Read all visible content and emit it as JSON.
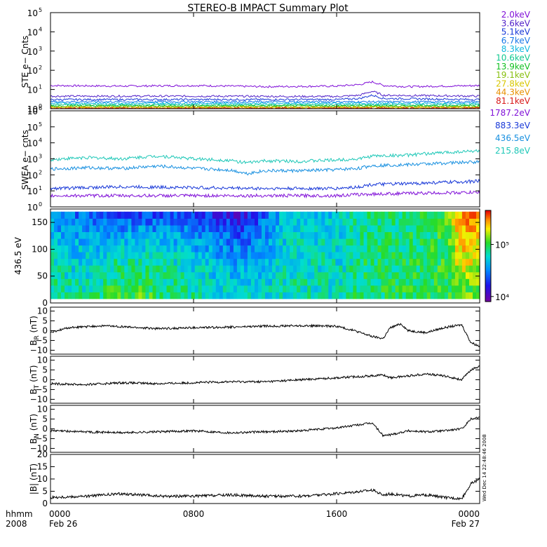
{
  "title": "STEREO-B IMPACT Summary Plot",
  "time_axis": {
    "row_label": "hhmm",
    "year_label": "2008",
    "ticks": [
      {
        "t": 0,
        "label": "0000",
        "date": "Feb 26"
      },
      {
        "t": 8,
        "label": "0800",
        "date": ""
      },
      {
        "t": 16,
        "label": "1600",
        "date": ""
      },
      {
        "t": 24,
        "label": "0000",
        "date": "Feb 27"
      }
    ]
  },
  "side_stamp": "Wed Dec 14 22:48:46 2008",
  "colorbar": {
    "range": [
      8000,
      450000
    ],
    "scale": "log",
    "tick_labels": [
      {
        "value": 10000,
        "label": "10⁴"
      },
      {
        "value": 100000,
        "label": "10⁵"
      }
    ]
  },
  "chart_data": [
    {
      "type": "line",
      "ylabel": "STE e− Cnts",
      "yscale": "log",
      "ylim": [
        1,
        100000
      ],
      "yticks": [
        {
          "v": 1,
          "base": "10",
          "exp": "0"
        },
        {
          "v": 10,
          "base": "10",
          "exp": "1"
        },
        {
          "v": 100,
          "base": "10",
          "exp": "2"
        },
        {
          "v": 1000,
          "base": "10",
          "exp": "3"
        },
        {
          "v": 10000,
          "base": "10",
          "exp": "4"
        },
        {
          "v": 100000,
          "base": "10",
          "exp": "5"
        }
      ],
      "legend_placement": "right",
      "series": [
        {
          "name": "2.0keV",
          "color": "#8010d8",
          "points": [
            [
              0,
              16
            ],
            [
              4,
              15
            ],
            [
              8,
              16
            ],
            [
              12,
              14
            ],
            [
              16,
              15
            ],
            [
              17.3,
              18
            ],
            [
              18,
              25
            ],
            [
              18.6,
              16
            ],
            [
              20,
              14
            ],
            [
              24,
              16
            ]
          ]
        },
        {
          "name": "3.6keV",
          "color": "#5020c8",
          "points": [
            [
              0,
              4.5
            ],
            [
              8,
              4.5
            ],
            [
              16,
              4.3
            ],
            [
              17.3,
              5
            ],
            [
              18,
              8
            ],
            [
              18.6,
              5
            ],
            [
              24,
              4.5
            ]
          ]
        },
        {
          "name": "5.1keV",
          "color": "#1838d8",
          "points": [
            [
              0,
              3
            ],
            [
              8,
              3
            ],
            [
              16,
              3
            ],
            [
              17.3,
              3.4
            ],
            [
              18,
              5
            ],
            [
              18.6,
              3.4
            ],
            [
              24,
              3
            ]
          ]
        },
        {
          "name": "6.7keV",
          "color": "#1878e8",
          "points": [
            [
              0,
              2.3
            ],
            [
              24,
              2.3
            ]
          ]
        },
        {
          "name": "8.3keV",
          "color": "#10b8e0",
          "points": [
            [
              0,
              1.9
            ],
            [
              24,
              1.9
            ]
          ]
        },
        {
          "name": "10.6keV",
          "color": "#10c890",
          "points": [
            [
              0,
              1.6
            ],
            [
              24,
              1.6
            ]
          ]
        },
        {
          "name": "13.9keV",
          "color": "#10c020",
          "points": [
            [
              0,
              1.4
            ],
            [
              24,
              1.4
            ]
          ]
        },
        {
          "name": "19.1keV",
          "color": "#88c010",
          "points": [
            [
              0,
              1.25
            ],
            [
              24,
              1.25
            ]
          ]
        },
        {
          "name": "27.8keV",
          "color": "#d8c800",
          "points": [
            [
              0,
              1.15
            ],
            [
              24,
              1.15
            ]
          ]
        },
        {
          "name": "44.3keV",
          "color": "#e89000",
          "points": [
            [
              0,
              1.08
            ],
            [
              24,
              1.08
            ]
          ]
        },
        {
          "name": "81.1keV",
          "color": "#d81818",
          "points": [
            [
              0,
              1.03
            ],
            [
              24,
              1.03
            ]
          ]
        }
      ]
    },
    {
      "type": "line",
      "ylabel": "SWEA e− cnts",
      "yscale": "log",
      "ylim": [
        1,
        1000000
      ],
      "yticks": [
        {
          "v": 1,
          "base": "10",
          "exp": "0"
        },
        {
          "v": 10,
          "base": "10",
          "exp": "1"
        },
        {
          "v": 100,
          "base": "10",
          "exp": "2"
        },
        {
          "v": 1000,
          "base": "10",
          "exp": "3"
        },
        {
          "v": 10000,
          "base": "10",
          "exp": "4"
        },
        {
          "v": 100000,
          "base": "10",
          "exp": "5"
        },
        {
          "v": 1000000,
          "base": "10",
          "exp": "6"
        }
      ],
      "legend_placement": "right",
      "series": [
        {
          "name": "1787.2eV",
          "color": "#8010d8",
          "points": [
            [
              0,
              5
            ],
            [
              4,
              5
            ],
            [
              8,
              5
            ],
            [
              12,
              5
            ],
            [
              16,
              5
            ],
            [
              17.3,
              6
            ],
            [
              20,
              7
            ],
            [
              24,
              8
            ]
          ]
        },
        {
          "name": "883.3eV",
          "color": "#1838d8",
          "points": [
            [
              0,
              14
            ],
            [
              4,
              18
            ],
            [
              8,
              16
            ],
            [
              10,
              15
            ],
            [
              12,
              14
            ],
            [
              16,
              14
            ],
            [
              17.3,
              18
            ],
            [
              18,
              25
            ],
            [
              20,
              28
            ],
            [
              24,
              40
            ]
          ]
        },
        {
          "name": "436.5eV",
          "color": "#1890e0",
          "points": [
            [
              0,
              230
            ],
            [
              2,
              280
            ],
            [
              4,
              250
            ],
            [
              6,
              350
            ],
            [
              8,
              250
            ],
            [
              10,
              200
            ],
            [
              11,
              120
            ],
            [
              12,
              180
            ],
            [
              14,
              180
            ],
            [
              16,
              210
            ],
            [
              17.3,
              260
            ],
            [
              18,
              380
            ],
            [
              20,
              430
            ],
            [
              24,
              650
            ]
          ]
        },
        {
          "name": "215.8eV",
          "color": "#20c8b8",
          "points": [
            [
              0,
              900
            ],
            [
              2,
              1200
            ],
            [
              4,
              1000
            ],
            [
              6,
              1500
            ],
            [
              8,
              1000
            ],
            [
              10,
              800
            ],
            [
              11,
              550
            ],
            [
              12,
              750
            ],
            [
              14,
              700
            ],
            [
              16,
              850
            ],
            [
              17.3,
              1000
            ],
            [
              18,
              1500
            ],
            [
              20,
              1700
            ],
            [
              24,
              3200
            ]
          ]
        }
      ]
    },
    {
      "type": "heatmap",
      "ylabel": "436.5 eV",
      "ylim": [
        0,
        175
      ],
      "yticks": [
        {
          "v": 0,
          "label": "0"
        },
        {
          "v": 50,
          "label": "50"
        },
        {
          "v": 100,
          "label": "100"
        },
        {
          "v": 150,
          "label": "150"
        }
      ],
      "value_range": [
        8000,
        450000
      ],
      "pitch_range": [
        8,
        170
      ],
      "profile": [
        [
          0,
          30000,
          80000
        ],
        [
          2,
          25000,
          70000
        ],
        [
          3.5,
          14000,
          110000
        ],
        [
          5,
          17000,
          110000
        ],
        [
          7,
          20000,
          85000
        ],
        [
          9,
          17000,
          65000
        ],
        [
          10.5,
          12000,
          55000
        ],
        [
          11.5,
          20000,
          55000
        ],
        [
          13.5,
          55000,
          70000
        ],
        [
          16,
          50000,
          65000
        ],
        [
          17.5,
          75000,
          85000
        ],
        [
          20,
          80000,
          90000
        ],
        [
          22,
          100000,
          95000
        ],
        [
          23,
          300000,
          110000
        ],
        [
          24,
          250000,
          110000
        ]
      ]
    },
    {
      "type": "line",
      "ylabel_main": "B",
      "ylabel_sub": "R",
      "ylabel_unit": "(nT)",
      "ylim": [
        -12,
        12
      ],
      "yticks": [
        {
          "v": -10,
          "label": "−10"
        },
        {
          "v": -5,
          "label": "−5"
        },
        {
          "v": 0,
          "label": "0"
        },
        {
          "v": 5,
          "label": "5"
        },
        {
          "v": 10,
          "label": "10"
        }
      ],
      "series": [
        {
          "name": "",
          "color": "#000000",
          "points": [
            [
              0,
              -1
            ],
            [
              1,
              1.5
            ],
            [
              2,
              2
            ],
            [
              3,
              2.5
            ],
            [
              4,
              2
            ],
            [
              6,
              1
            ],
            [
              8,
              1.5
            ],
            [
              10,
              1.8
            ],
            [
              12,
              2.3
            ],
            [
              14,
              2.5
            ],
            [
              16,
              2.3
            ],
            [
              17,
              0
            ],
            [
              18,
              -3
            ],
            [
              18.6,
              -4
            ],
            [
              19,
              1.5
            ],
            [
              19.6,
              3.5
            ],
            [
              20,
              0
            ],
            [
              21,
              -1
            ],
            [
              22,
              1.5
            ],
            [
              23,
              3
            ],
            [
              23.5,
              -6
            ],
            [
              24,
              -8
            ]
          ]
        }
      ]
    },
    {
      "type": "line",
      "ylabel_main": "B",
      "ylabel_sub": "T",
      "ylabel_unit": "(nT)",
      "ylim": [
        -12,
        12
      ],
      "yticks": [
        {
          "v": -10,
          "label": "−10"
        },
        {
          "v": -5,
          "label": "−5"
        },
        {
          "v": 0,
          "label": "0"
        },
        {
          "v": 5,
          "label": "5"
        },
        {
          "v": 10,
          "label": "10"
        }
      ],
      "series": [
        {
          "name": "",
          "color": "#000000",
          "points": [
            [
              0,
              -2
            ],
            [
              2,
              -2.5
            ],
            [
              4,
              -1.5
            ],
            [
              6,
              -2
            ],
            [
              8,
              -1.5
            ],
            [
              10,
              -1
            ],
            [
              12,
              -1
            ],
            [
              14,
              0
            ],
            [
              16,
              1
            ],
            [
              18,
              2
            ],
            [
              18.6,
              2.5
            ],
            [
              19,
              1
            ],
            [
              20,
              2
            ],
            [
              21,
              3
            ],
            [
              22,
              2
            ],
            [
              23,
              0
            ],
            [
              23.5,
              5
            ],
            [
              24,
              7
            ]
          ]
        }
      ]
    },
    {
      "type": "line",
      "ylabel_main": "B",
      "ylabel_sub": "N",
      "ylabel_unit": "(nT)",
      "ylim": [
        -12,
        12
      ],
      "yticks": [
        {
          "v": -10,
          "label": "−10"
        },
        {
          "v": -5,
          "label": "−5"
        },
        {
          "v": 0,
          "label": "0"
        },
        {
          "v": 5,
          "label": "5"
        },
        {
          "v": 10,
          "label": "10"
        }
      ],
      "series": [
        {
          "name": "",
          "color": "#000000",
          "points": [
            [
              0,
              -1
            ],
            [
              2,
              -1.5
            ],
            [
              4,
              -2
            ],
            [
              6,
              -1.5
            ],
            [
              8,
              -1
            ],
            [
              10,
              -2
            ],
            [
              12,
              -1.5
            ],
            [
              14,
              -1
            ],
            [
              16,
              0.5
            ],
            [
              18,
              3
            ],
            [
              18.6,
              -3.5
            ],
            [
              19,
              -3
            ],
            [
              20,
              -1
            ],
            [
              21,
              -1.5
            ],
            [
              22,
              -1
            ],
            [
              23,
              0
            ],
            [
              23.5,
              5
            ],
            [
              24,
              6
            ]
          ]
        }
      ]
    },
    {
      "type": "line",
      "ylabel_main": "|B|",
      "ylabel_sub": "",
      "ylabel_unit": "(nT)",
      "ylim": [
        0,
        20
      ],
      "yticks": [
        {
          "v": 0,
          "label": "0"
        },
        {
          "v": 5,
          "label": "5"
        },
        {
          "v": 10,
          "label": "10"
        },
        {
          "v": 15,
          "label": "15"
        },
        {
          "v": 20,
          "label": "20"
        }
      ],
      "series": [
        {
          "name": "",
          "color": "#000000",
          "points": [
            [
              0,
              2.5
            ],
            [
              2,
              3
            ],
            [
              4,
              4
            ],
            [
              6,
              3
            ],
            [
              8,
              3
            ],
            [
              10,
              3.5
            ],
            [
              12,
              3
            ],
            [
              14,
              3
            ],
            [
              16,
              4
            ],
            [
              18,
              5.5
            ],
            [
              18.6,
              3.5
            ],
            [
              19,
              4
            ],
            [
              20,
              3
            ],
            [
              21,
              3.5
            ],
            [
              22,
              2.5
            ],
            [
              23,
              2
            ],
            [
              23.5,
              8
            ],
            [
              24,
              10
            ]
          ]
        }
      ]
    }
  ]
}
